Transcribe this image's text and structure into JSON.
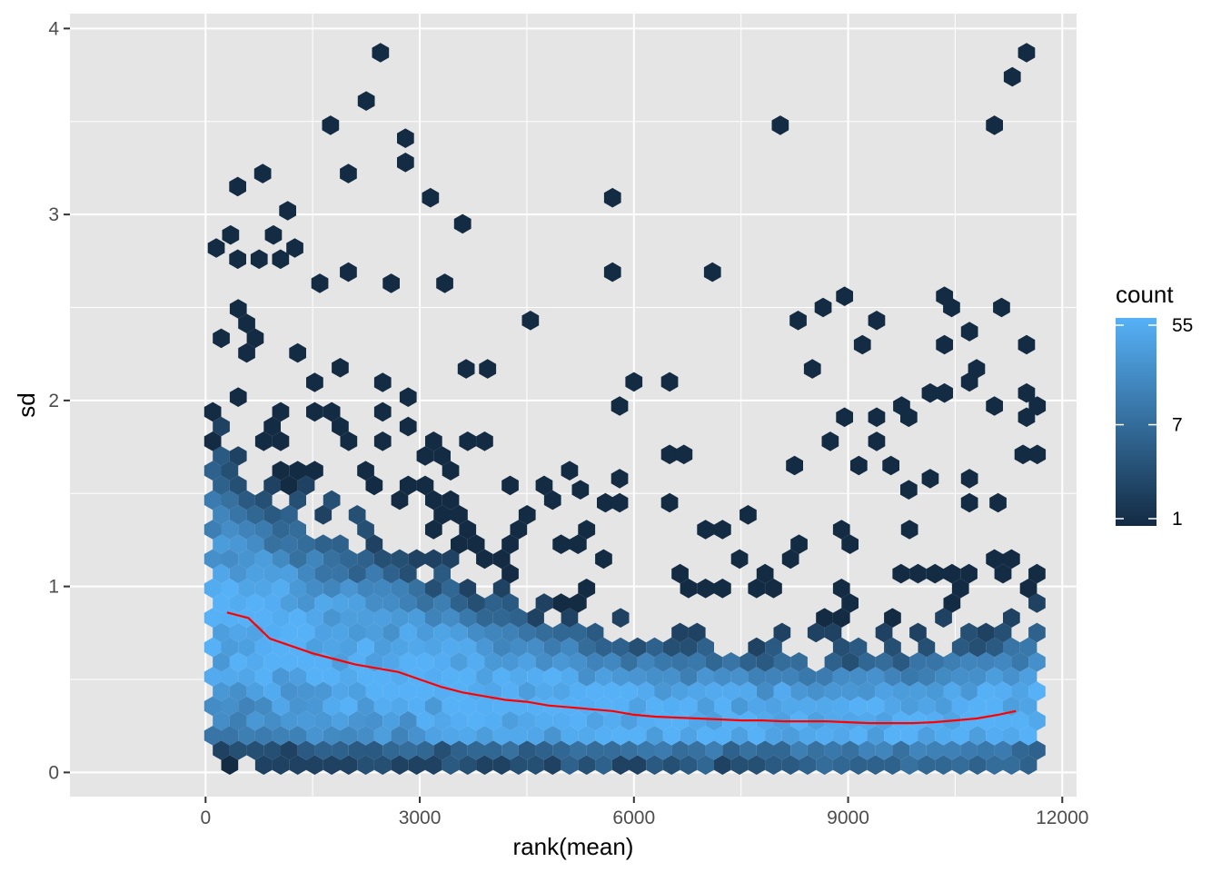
{
  "chart_data": {
    "type": "hexbin",
    "title": "",
    "xlabel": "rank(mean)",
    "ylabel": "sd",
    "xlim": [
      -1900,
      12200
    ],
    "ylim": [
      -0.13,
      4.08
    ],
    "xticks": [
      0,
      3000,
      6000,
      9000,
      12000
    ],
    "xtick_labels": [
      "0",
      "3000",
      "6000",
      "9000",
      "12000"
    ],
    "yticks": [
      0,
      1,
      2,
      3,
      4
    ],
    "ytick_labels": [
      "0",
      "1",
      "2",
      "3",
      "4"
    ],
    "grid": true,
    "panel_background": "#e5e5e5",
    "grid_color": "#ffffff",
    "legend": {
      "title": "count",
      "position": "right",
      "scale": "log",
      "breaks": [
        55,
        7,
        1
      ],
      "break_labels": [
        "55",
        "7",
        "1"
      ],
      "low_color": "#132b43",
      "high_color": "#56b1f7"
    },
    "trend_line": {
      "color": "#ff0000",
      "x": [
        300,
        600,
        900,
        1200,
        1500,
        1800,
        2100,
        2400,
        2700,
        3000,
        3300,
        3600,
        3900,
        4200,
        4500,
        4800,
        5100,
        5400,
        5700,
        6000,
        6300,
        6600,
        6900,
        7200,
        7500,
        7800,
        8100,
        8400,
        8700,
        9000,
        9300,
        9600,
        9900,
        10200,
        10500,
        10800,
        11100,
        11350
      ],
      "y": [
        0.86,
        0.83,
        0.72,
        0.68,
        0.64,
        0.61,
        0.58,
        0.56,
        0.54,
        0.5,
        0.46,
        0.43,
        0.41,
        0.39,
        0.38,
        0.36,
        0.35,
        0.34,
        0.33,
        0.31,
        0.3,
        0.295,
        0.29,
        0.285,
        0.28,
        0.28,
        0.275,
        0.275,
        0.275,
        0.27,
        0.265,
        0.265,
        0.265,
        0.27,
        0.28,
        0.29,
        0.31,
        0.33
      ]
    },
    "hex_bins": {
      "x_range": [
        100,
        11750
      ],
      "count_profile": [
        {
          "x": 0,
          "mean_sd": 0.85,
          "spread": 0.34
        },
        {
          "x": 1000,
          "mean_sd": 0.7,
          "spread": 0.3
        },
        {
          "x": 2000,
          "mean_sd": 0.58,
          "spread": 0.27
        },
        {
          "x": 3000,
          "mean_sd": 0.5,
          "spread": 0.24
        },
        {
          "x": 4000,
          "mean_sd": 0.41,
          "spread": 0.2
        },
        {
          "x": 5000,
          "mean_sd": 0.36,
          "spread": 0.18
        },
        {
          "x": 6000,
          "mean_sd": 0.31,
          "spread": 0.16
        },
        {
          "x": 7000,
          "mean_sd": 0.29,
          "spread": 0.15
        },
        {
          "x": 8000,
          "mean_sd": 0.275,
          "spread": 0.15
        },
        {
          "x": 9000,
          "mean_sd": 0.27,
          "spread": 0.15
        },
        {
          "x": 10000,
          "mean_sd": 0.27,
          "spread": 0.16
        },
        {
          "x": 11000,
          "mean_sd": 0.3,
          "spread": 0.18
        },
        {
          "x": 11750,
          "mean_sd": 0.33,
          "spread": 0.19
        }
      ],
      "outliers": [
        [
          2450,
          3.87
        ],
        [
          11500,
          3.87
        ],
        [
          11300,
          3.74
        ],
        [
          2250,
          3.61
        ],
        [
          1750,
          3.48
        ],
        [
          8050,
          3.48
        ],
        [
          11050,
          3.48
        ],
        [
          2800,
          3.41
        ],
        [
          2800,
          3.28
        ],
        [
          800,
          3.22
        ],
        [
          2000,
          3.22
        ],
        [
          450,
          3.15
        ],
        [
          3150,
          3.09
        ],
        [
          5700,
          3.09
        ],
        [
          1150,
          3.02
        ],
        [
          3600,
          2.95
        ],
        [
          350,
          2.89
        ],
        [
          950,
          2.89
        ],
        [
          150,
          2.82
        ],
        [
          1250,
          2.82
        ],
        [
          450,
          2.76
        ],
        [
          750,
          2.76
        ],
        [
          1050,
          2.76
        ],
        [
          5700,
          2.69
        ],
        [
          7100,
          2.69
        ],
        [
          2000,
          2.69
        ],
        [
          1600,
          2.63
        ],
        [
          2600,
          2.63
        ],
        [
          3350,
          2.63
        ],
        [
          8950,
          2.56
        ],
        [
          10350,
          2.56
        ],
        [
          8650,
          2.5
        ],
        [
          11150,
          2.5
        ],
        [
          10450,
          2.5
        ],
        [
          4550,
          2.43
        ],
        [
          8300,
          2.43
        ],
        [
          9400,
          2.43
        ],
        [
          9200,
          2.3
        ],
        [
          10350,
          2.3
        ],
        [
          11500,
          2.3
        ],
        [
          10700,
          2.37
        ],
        [
          8500,
          2.17
        ],
        [
          10800,
          2.17
        ],
        [
          6000,
          2.1
        ],
        [
          6500,
          2.1
        ],
        [
          10700,
          2.1
        ],
        [
          3650,
          2.17
        ],
        [
          3950,
          2.17
        ],
        [
          10150,
          2.04
        ],
        [
          10350,
          2.04
        ],
        [
          11500,
          2.04
        ],
        [
          5800,
          1.97
        ],
        [
          9750,
          1.97
        ],
        [
          11650,
          1.97
        ],
        [
          11050,
          1.97
        ],
        [
          8950,
          1.91
        ],
        [
          9400,
          1.91
        ],
        [
          9850,
          1.91
        ],
        [
          11500,
          1.91
        ],
        [
          9400,
          1.78
        ],
        [
          8750,
          1.78
        ],
        [
          11450,
          1.71
        ],
        [
          11650,
          1.71
        ],
        [
          6500,
          1.71
        ],
        [
          6700,
          1.71
        ],
        [
          8250,
          1.65
        ],
        [
          9150,
          1.65
        ],
        [
          9600,
          1.65
        ],
        [
          10150,
          1.58
        ],
        [
          10700,
          1.58
        ],
        [
          5250,
          1.52
        ],
        [
          9850,
          1.52
        ],
        [
          10700,
          1.45
        ],
        [
          6500,
          1.45
        ],
        [
          5600,
          1.45
        ],
        [
          5800,
          1.45
        ],
        [
          5800,
          1.58
        ],
        [
          11100,
          1.45
        ]
      ]
    }
  }
}
